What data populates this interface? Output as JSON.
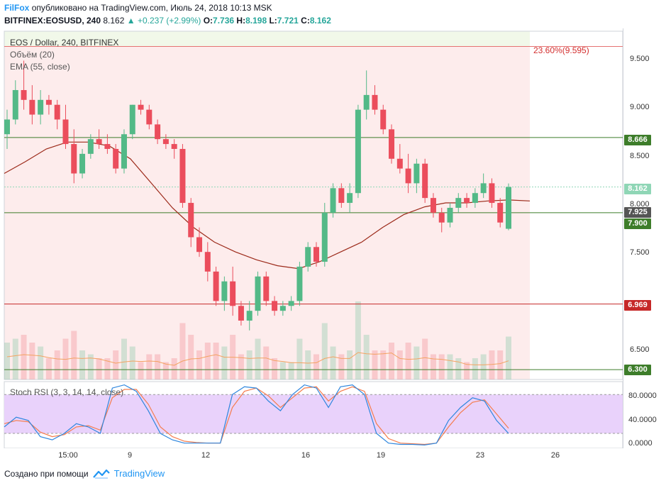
{
  "header": {
    "author": "FilFox",
    "published_text": "опубликовано на TradingView.com, Июль 24, 2018 10:13 MSK",
    "symbol": "BITFINEX:EOSUSD, 240",
    "last": "8.162",
    "change": "▲ +0.237 (+2.99%)",
    "o_label": "O:",
    "o_value": "7.736",
    "h_label": "H:",
    "h_value": "8.198",
    "l_label": "L:",
    "l_value": "7.721",
    "c_label": "C:",
    "c_value": "8.162"
  },
  "main_pane": {
    "title": "EOS / Dollar, 240, BITFINEX",
    "volume_label": "Объём (20)",
    "ema_label": "EMA (55, close)",
    "fib_label": "23.60%(9.595)",
    "price_ticks": [
      "9.500",
      "9.000",
      "8.500",
      "8.000",
      "7.500",
      "6.500"
    ],
    "badges": [
      {
        "text": "8.666",
        "color": "#3d7d2a"
      },
      {
        "text": "8.162",
        "color": "#8fd6b6"
      },
      {
        "text": "7.925",
        "color": "#555555"
      },
      {
        "text": "7.900",
        "color": "#3d7d2a"
      },
      {
        "text": "6.969",
        "color": "#c62828"
      },
      {
        "text": "6.300",
        "color": "#3d7d2a"
      }
    ]
  },
  "stoch_pane": {
    "title": "Stoch RSI (3, 3, 14, 14, close)",
    "ticks": [
      "80.0000",
      "40.0000",
      "0.0000"
    ]
  },
  "time_axis": [
    "15:00",
    "9",
    "12",
    "16",
    "19",
    "23",
    "26"
  ],
  "footer": {
    "created_with": "Создано при помощи",
    "brand": "TradingView"
  },
  "chart_data": {
    "type": "candlestick",
    "symbol": "EOSUSD",
    "timeframe": "240",
    "y_range": [
      6.2,
      9.75
    ],
    "candles_ohlc": [
      [
        8.7,
        8.95,
        8.55,
        8.85
      ],
      [
        8.85,
        9.25,
        8.8,
        9.15
      ],
      [
        9.15,
        9.45,
        8.95,
        9.05
      ],
      [
        9.05,
        9.2,
        8.8,
        8.9
      ],
      [
        8.9,
        9.15,
        8.8,
        9.05
      ],
      [
        9.05,
        9.1,
        8.9,
        9.0
      ],
      [
        9.0,
        9.05,
        8.75,
        8.85
      ],
      [
        8.85,
        9.0,
        8.55,
        8.6
      ],
      [
        8.6,
        8.75,
        8.2,
        8.3
      ],
      [
        8.3,
        8.55,
        8.25,
        8.5
      ],
      [
        8.5,
        8.7,
        8.45,
        8.65
      ],
      [
        8.65,
        8.75,
        8.55,
        8.6
      ],
      [
        8.6,
        8.7,
        8.5,
        8.55
      ],
      [
        8.55,
        8.6,
        8.3,
        8.35
      ],
      [
        8.35,
        8.75,
        8.3,
        8.7
      ],
      [
        8.7,
        9.0,
        8.65,
        9.0
      ],
      [
        9.0,
        9.05,
        8.9,
        8.95
      ],
      [
        8.95,
        9.0,
        8.75,
        8.8
      ],
      [
        8.8,
        8.85,
        8.6,
        8.65
      ],
      [
        8.65,
        8.7,
        8.55,
        8.6
      ],
      [
        8.6,
        8.65,
        8.45,
        8.55
      ],
      [
        8.55,
        8.6,
        7.95,
        8.0
      ],
      [
        8.0,
        8.05,
        7.55,
        7.65
      ],
      [
        7.65,
        7.75,
        7.45,
        7.5
      ],
      [
        7.5,
        7.6,
        7.2,
        7.3
      ],
      [
        7.3,
        7.35,
        6.95,
        7.0
      ],
      [
        7.0,
        7.25,
        6.9,
        7.2
      ],
      [
        7.2,
        7.35,
        6.85,
        6.95
      ],
      [
        6.95,
        7.0,
        6.75,
        6.8
      ],
      [
        6.8,
        7.0,
        6.7,
        6.9
      ],
      [
        6.9,
        7.3,
        6.85,
        7.25
      ],
      [
        7.25,
        7.3,
        6.95,
        7.0
      ],
      [
        7.0,
        7.05,
        6.85,
        6.9
      ],
      [
        6.9,
        7.0,
        6.85,
        6.95
      ],
      [
        6.95,
        7.05,
        6.9,
        7.0
      ],
      [
        7.0,
        7.4,
        6.95,
        7.35
      ],
      [
        7.35,
        7.6,
        7.3,
        7.55
      ],
      [
        7.55,
        7.6,
        7.35,
        7.4
      ],
      [
        7.4,
        8.0,
        7.35,
        7.9
      ],
      [
        7.9,
        8.2,
        7.85,
        8.15
      ],
      [
        8.15,
        8.2,
        7.95,
        8.0
      ],
      [
        8.0,
        8.2,
        7.9,
        8.1
      ],
      [
        8.1,
        9.0,
        8.05,
        8.95
      ],
      [
        8.95,
        9.35,
        8.85,
        9.1
      ],
      [
        9.1,
        9.2,
        8.9,
        8.95
      ],
      [
        8.95,
        9.0,
        8.7,
        8.75
      ],
      [
        8.75,
        8.8,
        8.4,
        8.45
      ],
      [
        8.45,
        8.6,
        8.3,
        8.35
      ],
      [
        8.35,
        8.5,
        8.1,
        8.2
      ],
      [
        8.2,
        8.45,
        8.1,
        8.4
      ],
      [
        8.4,
        8.45,
        8.0,
        8.05
      ],
      [
        8.05,
        8.1,
        7.85,
        7.9
      ],
      [
        7.9,
        7.95,
        7.7,
        7.8
      ],
      [
        7.8,
        8.0,
        7.75,
        7.95
      ],
      [
        7.95,
        8.1,
        7.9,
        8.05
      ],
      [
        8.05,
        8.1,
        7.95,
        8.0
      ],
      [
        8.0,
        8.15,
        7.95,
        8.1
      ],
      [
        8.1,
        8.3,
        8.05,
        8.2
      ],
      [
        8.2,
        8.25,
        7.95,
        8.0
      ],
      [
        8.0,
        8.05,
        7.75,
        7.8
      ],
      [
        7.736,
        8.198,
        7.721,
        8.162
      ]
    ],
    "ema_55": [
      8.3,
      8.42,
      8.55,
      8.62,
      8.62,
      8.58,
      8.45,
      8.2,
      7.95,
      7.75,
      7.6,
      7.5,
      7.42,
      7.36,
      7.33,
      7.4,
      7.5,
      7.6,
      7.75,
      7.88,
      7.96,
      8.0,
      8.0,
      8.02,
      8.03,
      8.02
    ],
    "horizontal_levels": [
      9.595,
      8.666,
      7.9,
      6.969,
      6.3
    ],
    "stoch_rsi": {
      "k": [
        30,
        45,
        40,
        15,
        10,
        20,
        35,
        30,
        20,
        90,
        95,
        85,
        55,
        20,
        10,
        5,
        5,
        5,
        5,
        80,
        92,
        90,
        70,
        55,
        80,
        95,
        90,
        60,
        92,
        95,
        80,
        20,
        5,
        3,
        3,
        2,
        5,
        40,
        60,
        75,
        70,
        40,
        20
      ],
      "d": [
        35,
        40,
        38,
        22,
        15,
        18,
        30,
        32,
        25,
        75,
        88,
        88,
        65,
        30,
        15,
        8,
        6,
        5,
        5,
        60,
        85,
        90,
        78,
        60,
        75,
        90,
        92,
        70,
        85,
        92,
        85,
        35,
        12,
        5,
        4,
        3,
        5,
        30,
        52,
        68,
        72,
        50,
        28
      ],
      "overbought": 80,
      "oversold": 20,
      "y_range": [
        -3,
        100
      ]
    }
  }
}
